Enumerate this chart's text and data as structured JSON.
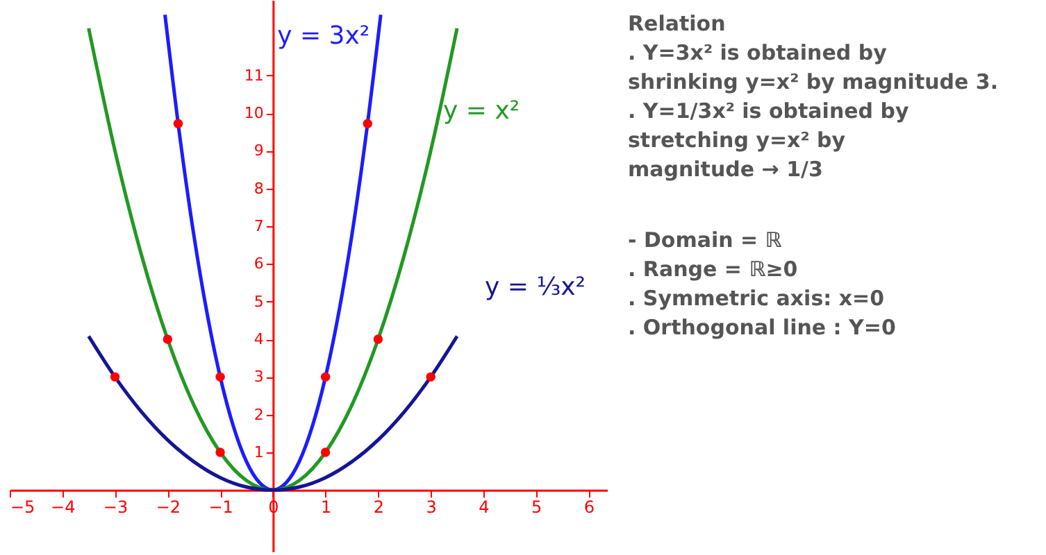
{
  "chart_data": {
    "type": "line",
    "xlim": [
      -5,
      6.35
    ],
    "ylim": [
      -1.65,
      13
    ],
    "xticks": [
      -5,
      -4,
      -3,
      -2,
      -1,
      0,
      1,
      2,
      3,
      4,
      5,
      6
    ],
    "yticks": [
      1,
      2,
      3,
      4,
      5,
      6,
      7,
      8,
      9,
      10,
      11
    ],
    "grid": false,
    "line_style": "solid",
    "series": [
      {
        "name": "y = 3x²",
        "color": "#1c1cff",
        "x": [
          -2.05,
          -1.75,
          -1.5,
          -1.25,
          -1,
          -0.75,
          -0.5,
          -0.25,
          0,
          0.25,
          0.5,
          0.75,
          1,
          1.25,
          1.5,
          1.75,
          2.05
        ],
        "values": [
          12.61,
          9.19,
          6.75,
          4.69,
          3,
          1.69,
          0.75,
          0.19,
          0,
          0.19,
          0.75,
          1.69,
          3,
          4.69,
          6.75,
          9.19,
          12.61
        ]
      },
      {
        "name": "y = x²",
        "color": "#229922",
        "x": [
          -3.5,
          -3,
          -2.5,
          -2,
          -1.5,
          -1,
          -0.5,
          0,
          0.5,
          1,
          1.5,
          2,
          2.5,
          3,
          3.5
        ],
        "values": [
          12.25,
          9,
          6.25,
          4,
          2.25,
          1,
          0.25,
          0,
          0.25,
          1,
          2.25,
          4,
          6.25,
          9,
          12.25
        ]
      },
      {
        "name": "y = ⅓x²",
        "color": "#151596",
        "x": [
          -3.5,
          -3,
          -2.5,
          -2,
          -1.5,
          -1,
          -0.5,
          0,
          0.5,
          1,
          1.5,
          2,
          2.5,
          3,
          3.5
        ],
        "values": [
          4.08,
          3,
          2.08,
          1.33,
          0.75,
          0.33,
          0.08,
          0,
          0.08,
          0.33,
          0.75,
          1.33,
          2.08,
          3,
          4.08
        ]
      },
      {
        "type": "scatter",
        "marker": "circle",
        "color": "#ff0000",
        "x": [
          -3,
          -2,
          -1,
          -1,
          -1.8,
          3,
          2,
          1,
          1,
          1.8
        ],
        "values": [
          3,
          4,
          3,
          1,
          9.72,
          3,
          4,
          3,
          1,
          9.72
        ]
      }
    ],
    "annotations": [
      "Relation",
      ". Y=3x² is obtained by",
      "  shrinking y=x² by magnitude 3.",
      ". Y=1/3x² is obtained by",
      "  stretching y=x² by",
      "  magnitude → 1/3",
      "- Domain = ℝ",
      ". Range = ℝ≥0",
      ". Symmetric axis: x=0",
      ". Orthogonal line : Y=0"
    ]
  }
}
